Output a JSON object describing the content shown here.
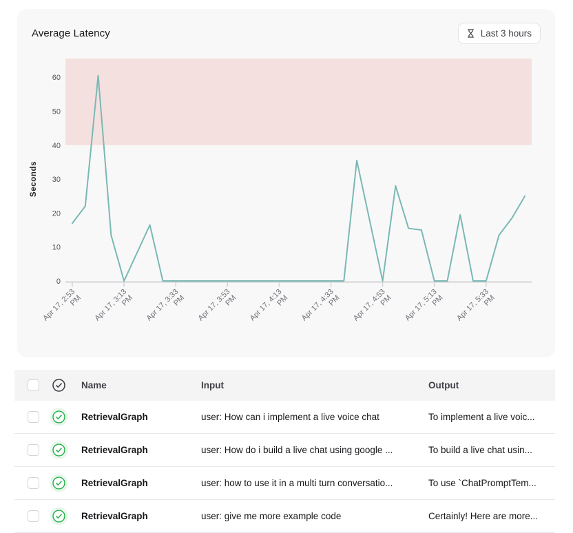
{
  "latency_card": {
    "title": "Average Latency",
    "time_range_button": {
      "label": "Last 3 hours",
      "icon": "hourglass-icon"
    },
    "background": "#f8f8f8"
  },
  "chart_data": {
    "type": "line",
    "title": "Average Latency",
    "ylabel": "Seconds",
    "xlabel": "",
    "ylim": [
      0,
      65.5
    ],
    "y_ticks": [
      0,
      10,
      20,
      30,
      40,
      50,
      60
    ],
    "grid": false,
    "legend": "none",
    "threshold_band": {
      "from": 40,
      "to": 65.5,
      "color": "#f5e0e0"
    },
    "axis_color": "#d4d4d8",
    "x_tick_color": "#71717a",
    "y_tick_color": "#52525b",
    "x_ticks": [
      {
        "m": 0,
        "line1": "Apr 17, 2:53",
        "line2": "PM"
      },
      {
        "m": 20,
        "line1": "Apr 17, 3:13",
        "line2": "PM"
      },
      {
        "m": 40,
        "line1": "Apr 17, 3:33",
        "line2": "PM"
      },
      {
        "m": 60,
        "line1": "Apr 17, 3:53",
        "line2": "PM"
      },
      {
        "m": 80,
        "line1": "Apr 17, 4:13",
        "line2": "PM"
      },
      {
        "m": 100,
        "line1": "Apr 17, 4:33",
        "line2": "PM"
      },
      {
        "m": 120,
        "line1": "Apr 17, 4:53",
        "line2": "PM"
      },
      {
        "m": 140,
        "line1": "Apr 17, 5:13",
        "line2": "PM"
      },
      {
        "m": 160,
        "line1": "Apr 17, 5:33",
        "line2": "PM"
      }
    ],
    "series": [
      {
        "name": "Average Latency",
        "color": "#7ab8b4",
        "points": [
          {
            "m": 0,
            "time": "2:53 PM",
            "v": 17
          },
          {
            "m": 5,
            "time": "2:58 PM",
            "v": 22
          },
          {
            "m": 10,
            "time": "3:03 PM",
            "v": 60.5
          },
          {
            "m": 15,
            "time": "3:08 PM",
            "v": 13.5
          },
          {
            "m": 20,
            "time": "3:13 PM",
            "v": 0
          },
          {
            "m": 30,
            "time": "3:23 PM",
            "v": 16.5
          },
          {
            "m": 35,
            "time": "3:28 PM",
            "v": 0
          },
          {
            "m": 105,
            "time": "4:38 PM",
            "v": 0
          },
          {
            "m": 110,
            "time": "4:43 PM",
            "v": 35.5
          },
          {
            "m": 120,
            "time": "4:53 PM",
            "v": 0
          },
          {
            "m": 125,
            "time": "4:58 PM",
            "v": 28
          },
          {
            "m": 130,
            "time": "5:03 PM",
            "v": 15.5
          },
          {
            "m": 135,
            "time": "5:08 PM",
            "v": 15
          },
          {
            "m": 140,
            "time": "5:13 PM",
            "v": 0
          },
          {
            "m": 145,
            "time": "5:18 PM",
            "v": 0
          },
          {
            "m": 150,
            "time": "5:23 PM",
            "v": 19.5
          },
          {
            "m": 155,
            "time": "5:28 PM",
            "v": 0
          },
          {
            "m": 160,
            "time": "5:33 PM",
            "v": 0
          },
          {
            "m": 165,
            "time": "5:38 PM",
            "v": 13.5
          },
          {
            "m": 170,
            "time": "5:43 PM",
            "v": 18.5
          },
          {
            "m": 175,
            "time": "5:48 PM",
            "v": 25
          }
        ]
      }
    ]
  },
  "runs_table": {
    "columns": {
      "name": "Name",
      "input": "Input",
      "output": "Output"
    },
    "status_color": "#2bb24c",
    "header_icon_color": "#3f3f46",
    "rows": [
      {
        "status": "success",
        "name": "RetrievalGraph",
        "input": "user: How can i implement a live voice chat",
        "output": "To implement a live voic..."
      },
      {
        "status": "success",
        "name": "RetrievalGraph",
        "input": "user: How do i build a live chat using google ...",
        "output": "To build a live chat usin..."
      },
      {
        "status": "success",
        "name": "RetrievalGraph",
        "input": "user: how to use it in a multi turn conversatio...",
        "output": "To use `ChatPromptTem..."
      },
      {
        "status": "success",
        "name": "RetrievalGraph",
        "input": "user: give me more example code",
        "output": "Certainly! Here are more..."
      }
    ]
  }
}
